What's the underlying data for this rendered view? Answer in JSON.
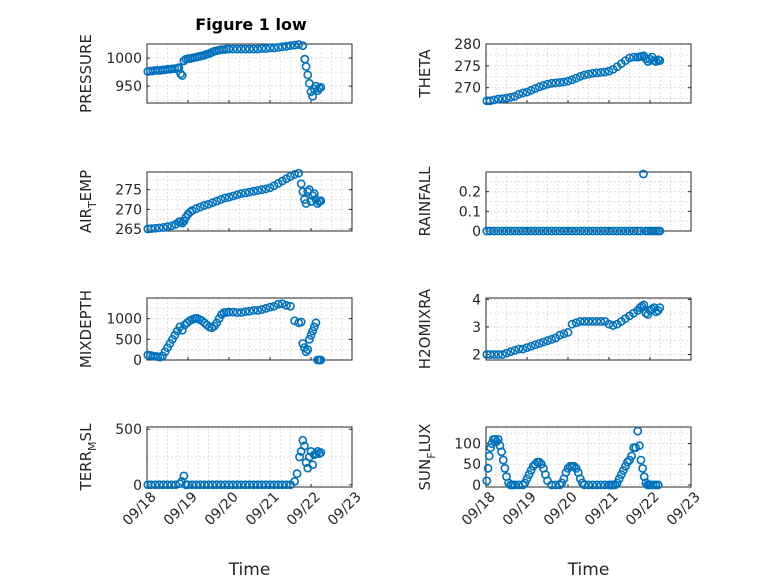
{
  "figure_title": "Figure 1 low",
  "marker_color": "#0072BD",
  "chart_data": [
    {
      "type": "scatter",
      "ylabel": "PRESSURE",
      "ylabel_sub": "",
      "ylim": [
        920,
        1025
      ],
      "yticks": [
        950,
        1000
      ],
      "ytick_labels": [
        "950",
        "1000"
      ],
      "xlim": [
        0,
        5
      ],
      "xtick_labels": [],
      "grid": "on",
      "x": [
        0.02,
        0.08,
        0.14,
        0.2,
        0.26,
        0.32,
        0.38,
        0.44,
        0.5,
        0.56,
        0.62,
        0.68,
        0.74,
        0.78,
        0.82,
        0.86,
        0.9,
        0.95,
        1.0,
        1.05,
        1.1,
        1.16,
        1.22,
        1.28,
        1.34,
        1.4,
        1.46,
        1.52,
        1.58,
        1.64,
        1.7,
        1.76,
        1.82,
        1.88,
        1.94,
        2.0,
        2.1,
        2.2,
        2.3,
        2.4,
        2.5,
        2.6,
        2.7,
        2.8,
        2.9,
        3.0,
        3.1,
        3.2,
        3.3,
        3.4,
        3.5,
        3.6,
        3.7,
        3.8,
        3.85,
        3.88,
        3.92,
        3.96,
        4.0,
        4.04,
        4.08,
        4.12,
        4.16,
        4.2,
        4.24
      ],
      "y": [
        976,
        977,
        977,
        978,
        978,
        978,
        979,
        979,
        980,
        980,
        981,
        981,
        982,
        983,
        972,
        969,
        995,
        998,
        999,
        999,
        1000,
        1001,
        1002,
        1003,
        1004,
        1005,
        1007,
        1008,
        1010,
        1012,
        1013,
        1014,
        1015,
        1015,
        1016,
        1016,
        1016,
        1016,
        1016,
        1016,
        1016,
        1016,
        1016,
        1017,
        1017,
        1018,
        1018,
        1019,
        1020,
        1021,
        1022,
        1023,
        1024,
        1022,
        998,
        985,
        970,
        955,
        940,
        932,
        945,
        950,
        942,
        946,
        948
      ]
    },
    {
      "type": "scatter",
      "ylabel": "THETA",
      "ylabel_sub": "",
      "ylim": [
        266.5,
        280
      ],
      "yticks": [
        270,
        275,
        280
      ],
      "ytick_labels": [
        "270",
        "275",
        "280"
      ],
      "xlim": [
        0,
        5
      ],
      "xtick_labels": [],
      "grid": "on",
      "x": [
        0.02,
        0.1,
        0.2,
        0.3,
        0.4,
        0.5,
        0.6,
        0.7,
        0.8,
        0.9,
        1.0,
        1.1,
        1.2,
        1.3,
        1.4,
        1.5,
        1.6,
        1.7,
        1.8,
        1.9,
        2.0,
        2.1,
        2.2,
        2.3,
        2.4,
        2.5,
        2.6,
        2.7,
        2.8,
        2.9,
        3.0,
        3.1,
        3.2,
        3.3,
        3.4,
        3.5,
        3.6,
        3.7,
        3.75,
        3.8,
        3.85,
        3.9,
        3.95,
        4.0,
        4.05,
        4.1,
        4.15,
        4.2,
        4.24
      ],
      "y": [
        267,
        267,
        267.2,
        267.4,
        267.5,
        267.6,
        267.8,
        268,
        268.5,
        268.8,
        269,
        269.4,
        269.8,
        270.2,
        270.5,
        270.8,
        271,
        271.1,
        271.2,
        271.3,
        271.5,
        271.8,
        272.2,
        272.6,
        272.9,
        273.1,
        273.3,
        273.4,
        273.5,
        273.6,
        273.8,
        274.2,
        274.8,
        275.5,
        276.2,
        276.8,
        277,
        277,
        277.1,
        277.2,
        277.3,
        276.6,
        276,
        276.5,
        277,
        276.2,
        276,
        276.4,
        276.2
      ]
    },
    {
      "type": "scatter",
      "ylabel": "AIR",
      "ylabel_sub": "T",
      "ylabel_tail": "EMP",
      "ylim": [
        264.5,
        279.5
      ],
      "yticks": [
        265,
        270,
        275
      ],
      "ytick_labels": [
        "265",
        "270",
        "275"
      ],
      "xlim": [
        0,
        5
      ],
      "xtick_labels": [],
      "grid": "on",
      "x": [
        0.02,
        0.1,
        0.2,
        0.3,
        0.4,
        0.5,
        0.6,
        0.7,
        0.78,
        0.82,
        0.86,
        0.9,
        0.95,
        1.0,
        1.05,
        1.1,
        1.2,
        1.3,
        1.4,
        1.5,
        1.6,
        1.7,
        1.8,
        1.9,
        2.0,
        2.1,
        2.2,
        2.3,
        2.4,
        2.5,
        2.6,
        2.7,
        2.8,
        2.9,
        3.0,
        3.1,
        3.2,
        3.3,
        3.4,
        3.5,
        3.6,
        3.7,
        3.76,
        3.8,
        3.84,
        3.88,
        3.92,
        3.96,
        4.0,
        4.04,
        4.08,
        4.12,
        4.16,
        4.2,
        4.24
      ],
      "y": [
        265,
        265.1,
        265.2,
        265.3,
        265.4,
        265.6,
        265.8,
        266.2,
        266.8,
        266.9,
        266.5,
        267,
        268,
        268.8,
        269.3,
        269.7,
        270.2,
        270.6,
        271,
        271.3,
        271.7,
        272.1,
        272.5,
        272.9,
        273.1,
        273.4,
        273.7,
        274,
        274.2,
        274.4,
        274.6,
        274.8,
        275,
        275.2,
        275.5,
        276,
        276.6,
        277.2,
        277.8,
        278.4,
        278.9,
        279.2,
        276.5,
        274.5,
        272.5,
        271.5,
        274.5,
        275,
        272,
        273.5,
        274,
        272.5,
        271.5,
        272,
        272.2
      ]
    },
    {
      "type": "scatter",
      "ylabel": "RAINFALL",
      "ylabel_sub": "",
      "ylim": [
        0,
        0.3
      ],
      "yticks": [
        0,
        0.1,
        0.2
      ],
      "ytick_labels": [
        "0",
        "0.1",
        "0.2"
      ],
      "xlim": [
        0,
        5
      ],
      "xtick_labels": [],
      "grid": "on",
      "x": [
        0.02,
        0.1,
        0.2,
        0.3,
        0.4,
        0.5,
        0.6,
        0.7,
        0.8,
        0.9,
        1.0,
        1.1,
        1.2,
        1.3,
        1.4,
        1.5,
        1.6,
        1.7,
        1.8,
        1.9,
        2.0,
        2.1,
        2.2,
        2.3,
        2.4,
        2.5,
        2.6,
        2.7,
        2.8,
        2.9,
        3.0,
        3.1,
        3.2,
        3.3,
        3.4,
        3.5,
        3.6,
        3.7,
        3.78,
        3.84,
        3.9,
        3.96,
        4.02,
        4.08,
        4.14,
        4.2,
        4.24
      ],
      "y": [
        0,
        0,
        0,
        0,
        0,
        0,
        0,
        0,
        0,
        0,
        0,
        0,
        0,
        0,
        0,
        0,
        0,
        0,
        0,
        0,
        0,
        0,
        0,
        0,
        0,
        0,
        0,
        0,
        0,
        0,
        0,
        0,
        0,
        0,
        0,
        0,
        0,
        0,
        0,
        0.29,
        0,
        0,
        0,
        0,
        0,
        0,
        0
      ]
    },
    {
      "type": "scatter",
      "ylabel": "MIXDEPTH",
      "ylabel_sub": "",
      "ylim": [
        0,
        1500
      ],
      "yticks": [
        0,
        500,
        1000
      ],
      "ytick_labels": [
        "0",
        "500",
        "1000"
      ],
      "xlim": [
        0,
        5
      ],
      "xtick_labels": [],
      "grid": "on",
      "x": [
        0.02,
        0.08,
        0.14,
        0.2,
        0.26,
        0.32,
        0.38,
        0.44,
        0.5,
        0.56,
        0.62,
        0.68,
        0.74,
        0.8,
        0.86,
        0.92,
        0.98,
        1.04,
        1.1,
        1.16,
        1.22,
        1.28,
        1.34,
        1.4,
        1.46,
        1.52,
        1.58,
        1.64,
        1.7,
        1.76,
        1.82,
        1.88,
        1.94,
        2.0,
        2.1,
        2.2,
        2.3,
        2.4,
        2.5,
        2.6,
        2.7,
        2.8,
        2.9,
        3.0,
        3.1,
        3.2,
        3.3,
        3.4,
        3.5,
        3.6,
        3.7,
        3.76,
        3.8,
        3.84,
        3.88,
        3.92,
        3.96,
        4.0,
        4.04,
        4.08,
        4.12,
        4.16,
        4.2,
        4.24
      ],
      "y": [
        120,
        110,
        100,
        90,
        80,
        70,
        100,
        200,
        300,
        400,
        500,
        600,
        700,
        800,
        720,
        850,
        900,
        950,
        980,
        1000,
        1010,
        980,
        950,
        900,
        850,
        800,
        780,
        820,
        900,
        1000,
        1100,
        1150,
        1150,
        1160,
        1160,
        1150,
        1150,
        1170,
        1180,
        1200,
        1200,
        1220,
        1250,
        1280,
        1300,
        1350,
        1360,
        1320,
        1300,
        950,
        900,
        920,
        400,
        300,
        200,
        250,
        500,
        600,
        700,
        800,
        900,
        0,
        0,
        0
      ]
    },
    {
      "type": "scatter",
      "ylabel": "H2OMIXRA",
      "ylabel_sub": "",
      "ylim": [
        1.8,
        4.05
      ],
      "yticks": [
        2,
        3,
        4
      ],
      "ytick_labels": [
        "2",
        "3",
        "4"
      ],
      "xlim": [
        0,
        5
      ],
      "xtick_labels": [],
      "grid": "on",
      "x": [
        0.02,
        0.1,
        0.2,
        0.3,
        0.4,
        0.5,
        0.6,
        0.7,
        0.8,
        0.9,
        1.0,
        1.1,
        1.2,
        1.3,
        1.4,
        1.5,
        1.6,
        1.7,
        1.8,
        1.9,
        2.0,
        2.1,
        2.2,
        2.3,
        2.4,
        2.5,
        2.6,
        2.7,
        2.8,
        2.9,
        3.0,
        3.1,
        3.2,
        3.3,
        3.4,
        3.5,
        3.6,
        3.7,
        3.76,
        3.8,
        3.85,
        3.9,
        3.95,
        4.0,
        4.05,
        4.1,
        4.15,
        4.2,
        4.24
      ],
      "y": [
        2,
        2,
        2,
        2,
        2,
        2.05,
        2.1,
        2.15,
        2.2,
        2.2,
        2.25,
        2.3,
        2.35,
        2.4,
        2.45,
        2.5,
        2.55,
        2.6,
        2.7,
        2.75,
        2.8,
        3.1,
        3.15,
        3.2,
        3.2,
        3.2,
        3.2,
        3.2,
        3.2,
        3.2,
        3.1,
        3.05,
        3.1,
        3.2,
        3.3,
        3.4,
        3.5,
        3.6,
        3.7,
        3.75,
        3.8,
        3.5,
        3.45,
        3.6,
        3.65,
        3.7,
        3.55,
        3.6,
        3.7
      ]
    },
    {
      "type": "scatter",
      "ylabel": "TERR",
      "ylabel_sub": "M",
      "ylabel_tail": "SL",
      "ylim": [
        -20,
        520
      ],
      "yticks": [
        0,
        500
      ],
      "ytick_labels": [
        "0",
        "500"
      ],
      "xlim": [
        0,
        5
      ],
      "xtick_labels": [
        "09/18",
        "09/19",
        "09/20",
        "09/21",
        "09/22",
        "09/23"
      ],
      "xlabel": "Time",
      "grid": "on",
      "x": [
        0.02,
        0.1,
        0.2,
        0.3,
        0.4,
        0.5,
        0.6,
        0.7,
        0.8,
        0.85,
        0.9,
        0.95,
        1.0,
        1.1,
        1.2,
        1.3,
        1.4,
        1.5,
        1.6,
        1.7,
        1.8,
        1.9,
        2.0,
        2.1,
        2.2,
        2.3,
        2.4,
        2.5,
        2.6,
        2.7,
        2.8,
        2.9,
        3.0,
        3.1,
        3.2,
        3.3,
        3.4,
        3.5,
        3.6,
        3.66,
        3.72,
        3.76,
        3.8,
        3.84,
        3.88,
        3.92,
        3.96,
        4.0,
        4.04,
        4.08,
        4.12,
        4.16,
        4.2,
        4.24
      ],
      "y": [
        0,
        0,
        0,
        0,
        0,
        0,
        0,
        0,
        10,
        30,
        80,
        0,
        0,
        0,
        0,
        0,
        0,
        0,
        0,
        0,
        0,
        0,
        0,
        0,
        0,
        0,
        0,
        0,
        0,
        0,
        0,
        0,
        0,
        0,
        0,
        0,
        0,
        0,
        30,
        100,
        250,
        300,
        400,
        350,
        200,
        150,
        250,
        300,
        180,
        270,
        280,
        300,
        280,
        290
      ]
    },
    {
      "type": "scatter",
      "ylabel": "SUN",
      "ylabel_sub": "F",
      "ylabel_tail": "LUX",
      "ylim": [
        -5,
        140
      ],
      "yticks": [
        0,
        50,
        100
      ],
      "ytick_labels": [
        "0",
        "50",
        "100"
      ],
      "xlim": [
        0,
        5
      ],
      "xtick_labels": [
        "09/18",
        "09/19",
        "09/20",
        "09/21",
        "09/22",
        "09/23"
      ],
      "xlabel": "Time",
      "grid": "on",
      "x": [
        0.02,
        0.05,
        0.08,
        0.11,
        0.14,
        0.18,
        0.22,
        0.26,
        0.3,
        0.34,
        0.38,
        0.42,
        0.46,
        0.5,
        0.55,
        0.6,
        0.65,
        0.7,
        0.8,
        0.9,
        0.95,
        1.0,
        1.05,
        1.1,
        1.15,
        1.2,
        1.25,
        1.3,
        1.35,
        1.4,
        1.45,
        1.5,
        1.6,
        1.7,
        1.8,
        1.85,
        1.9,
        1.95,
        2.0,
        2.05,
        2.1,
        2.15,
        2.2,
        2.25,
        2.3,
        2.35,
        2.4,
        2.5,
        2.6,
        2.7,
        2.8,
        2.9,
        3.0,
        3.05,
        3.1,
        3.15,
        3.2,
        3.25,
        3.3,
        3.35,
        3.4,
        3.45,
        3.5,
        3.55,
        3.6,
        3.65,
        3.7,
        3.74,
        3.78,
        3.82,
        3.86,
        3.9,
        3.94,
        3.98,
        4.02,
        4.08,
        4.14,
        4.2
      ],
      "y": [
        10,
        40,
        70,
        90,
        100,
        110,
        110,
        105,
        110,
        95,
        80,
        60,
        40,
        20,
        5,
        0,
        0,
        0,
        0,
        0,
        5,
        15,
        25,
        35,
        45,
        50,
        55,
        55,
        50,
        40,
        25,
        10,
        0,
        0,
        0,
        5,
        15,
        30,
        40,
        45,
        45,
        45,
        40,
        30,
        15,
        5,
        0,
        0,
        0,
        0,
        0,
        0,
        0,
        0,
        0,
        0,
        5,
        15,
        25,
        35,
        45,
        55,
        60,
        70,
        90,
        90,
        130,
        95,
        60,
        40,
        20,
        5,
        0,
        0,
        0,
        0,
        0,
        0
      ]
    }
  ]
}
